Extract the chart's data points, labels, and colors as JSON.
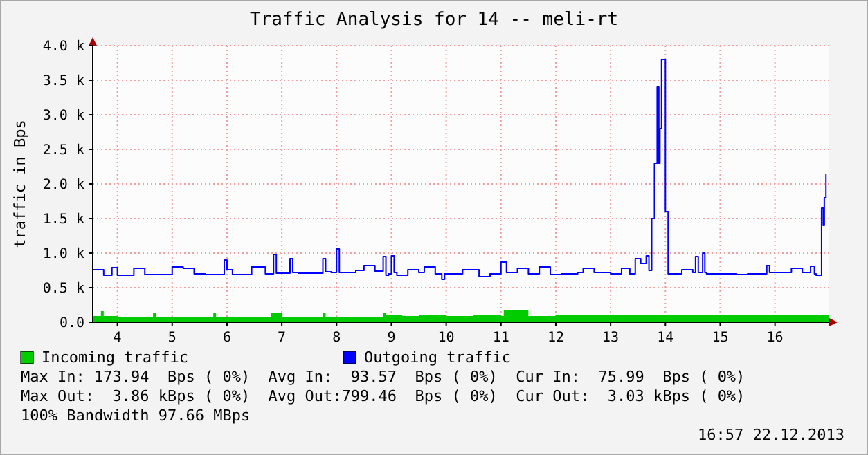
{
  "chart_data": {
    "type": "step",
    "title": "Traffic Analysis for 14 -- meli-rt",
    "ylabel": "traffic in Bps",
    "xlim": [
      3.55,
      16.99
    ],
    "xticks": [
      4,
      5,
      6,
      7,
      8,
      9,
      10,
      11,
      12,
      13,
      14,
      15,
      16
    ],
    "ylim": [
      0,
      4000
    ],
    "yticks": [
      {
        "value": 0,
        "label": "0.0"
      },
      {
        "value": 500,
        "label": "0.5 k"
      },
      {
        "value": 1000,
        "label": "1.0 k"
      },
      {
        "value": 1500,
        "label": "1.5 k"
      },
      {
        "value": 2000,
        "label": "2.0 k"
      },
      {
        "value": 2500,
        "label": "2.5 k"
      },
      {
        "value": 3000,
        "label": "3.0 k"
      },
      {
        "value": 3500,
        "label": "3.5 k"
      },
      {
        "value": 4000,
        "label": "4.0 k"
      }
    ],
    "grid": true,
    "legend": "bottom",
    "line_style": "solid",
    "marker": "none",
    "series": [
      {
        "name": "Incoming traffic",
        "type": "area",
        "color": "#00cc00",
        "x": [
          3.55,
          3.7,
          3.75,
          4.0,
          4.5,
          4.65,
          4.7,
          5.0,
          5.7,
          5.75,
          5.8,
          6.0,
          6.75,
          6.8,
          7.0,
          7.7,
          7.75,
          7.8,
          8.0,
          8.8,
          8.85,
          8.9,
          9.2,
          9.5,
          10.0,
          10.5,
          11.0,
          11.05,
          11.5,
          12.0,
          12.5,
          13.0,
          13.5,
          14.0,
          14.5,
          15.0,
          15.5,
          16.0,
          16.5,
          16.9,
          16.99
        ],
        "values": [
          90,
          160,
          90,
          80,
          80,
          140,
          80,
          80,
          80,
          140,
          80,
          80,
          80,
          140,
          80,
          80,
          140,
          80,
          80,
          80,
          130,
          100,
          90,
          100,
          90,
          100,
          90,
          170,
          90,
          100,
          100,
          100,
          110,
          100,
          110,
          100,
          110,
          100,
          110,
          100,
          100
        ]
      },
      {
        "name": "Outgoing traffic",
        "color": "#0000ff",
        "x": [
          3.55,
          3.75,
          3.9,
          4.0,
          4.3,
          4.5,
          5.0,
          5.2,
          5.4,
          5.6,
          5.95,
          6.0,
          6.1,
          6.45,
          6.7,
          6.85,
          6.9,
          7.15,
          7.2,
          7.3,
          7.75,
          7.8,
          7.9,
          8.0,
          8.05,
          8.15,
          8.35,
          8.5,
          8.7,
          8.85,
          8.9,
          8.95,
          9.0,
          9.05,
          9.1,
          9.3,
          9.5,
          9.6,
          9.8,
          9.92,
          9.97,
          10.1,
          10.3,
          10.6,
          10.8,
          11.0,
          11.1,
          11.3,
          11.5,
          11.7,
          11.9,
          12.1,
          12.4,
          12.5,
          12.7,
          13.0,
          13.2,
          13.35,
          13.45,
          13.55,
          13.65,
          13.7,
          13.75,
          13.8,
          13.85,
          13.88,
          13.9,
          13.93,
          13.98,
          14.0,
          14.05,
          14.3,
          14.5,
          14.55,
          14.6,
          14.65,
          14.68,
          14.72,
          14.75,
          15.0,
          15.3,
          15.5,
          15.85,
          15.9,
          16.0,
          16.3,
          16.5,
          16.65,
          16.72,
          16.75,
          16.85,
          16.88,
          16.9,
          16.93
        ],
        "values": [
          760,
          680,
          790,
          680,
          780,
          690,
          800,
          780,
          700,
          690,
          900,
          760,
          690,
          800,
          700,
          980,
          710,
          920,
          720,
          710,
          920,
          730,
          720,
          1060,
          720,
          720,
          750,
          820,
          740,
          950,
          680,
          700,
          960,
          720,
          680,
          760,
          720,
          800,
          700,
          620,
          700,
          700,
          760,
          660,
          700,
          870,
          720,
          780,
          700,
          800,
          690,
          700,
          720,
          780,
          720,
          700,
          780,
          700,
          920,
          850,
          960,
          750,
          1500,
          2300,
          3400,
          2300,
          2800,
          3800,
          3800,
          1600,
          700,
          760,
          720,
          950,
          720,
          720,
          1000,
          720,
          700,
          700,
          690,
          700,
          820,
          720,
          720,
          780,
          720,
          810,
          700,
          680,
          1650,
          1400,
          1800,
          2150
        ]
      }
    ],
    "annotations": [
      "Max In: 173.94  Bps ( 0%)  Avg In:  93.57  Bps ( 0%)  Cur In:  75.99  Bps ( 0%)",
      "Max Out:  3.86 kBps ( 0%)  Avg Out:799.46  Bps ( 0%)  Cur Out:  3.03 kBps ( 0%)",
      "100% Bandwidth 97.66 MBps",
      "16:57 22.12.2013"
    ]
  }
}
